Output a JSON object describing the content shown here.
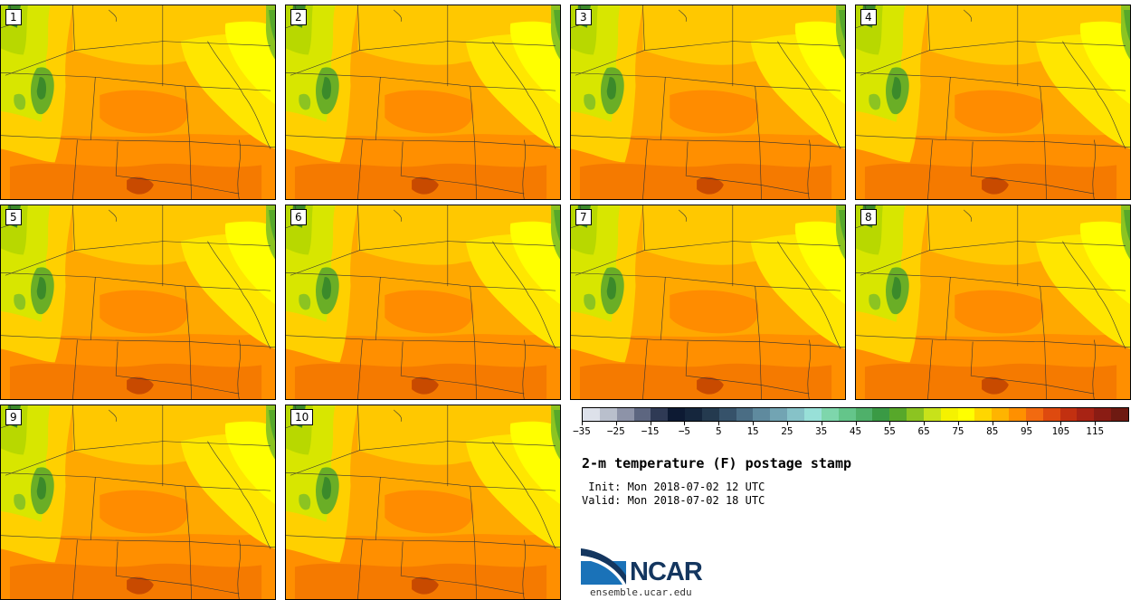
{
  "panels": [
    {
      "label": "1"
    },
    {
      "label": "2"
    },
    {
      "label": "3"
    },
    {
      "label": "4"
    },
    {
      "label": "5"
    },
    {
      "label": "6"
    },
    {
      "label": "7"
    },
    {
      "label": "8"
    },
    {
      "label": "9"
    },
    {
      "label": "10"
    }
  ],
  "colorbar": {
    "colors": [
      "#dde1ea",
      "#b9bfcc",
      "#8d93a8",
      "#5d6680",
      "#2f3a55",
      "#0d1a33",
      "#15263d",
      "#243a4f",
      "#36526a",
      "#4a6d84",
      "#5f8a9e",
      "#72a4b3",
      "#86c2c8",
      "#98e0d8",
      "#7ed6ac",
      "#64c58a",
      "#4fb06a",
      "#3a9a45",
      "#57a82a",
      "#8cc421",
      "#c8e21a",
      "#f5f200",
      "#ffff00",
      "#ffd600",
      "#ffb400",
      "#ff9000",
      "#f26a10",
      "#de4a0f",
      "#c23010",
      "#a82314",
      "#8a1c14",
      "#6e1a12"
    ],
    "ticks": [
      "−35",
      "−25",
      "−15",
      "−5",
      "5",
      "15",
      "25",
      "35",
      "45",
      "55",
      "65",
      "75",
      "85",
      "95",
      "105",
      "115"
    ]
  },
  "title": "2-m temperature (F) postage stamp",
  "init": " Init: Mon 2018-07-02 12 UTC",
  "valid": "Valid: Mon 2018-07-02 18 UTC",
  "logo": {
    "name": "NCAR",
    "url": "ensemble.ucar.edu"
  }
}
